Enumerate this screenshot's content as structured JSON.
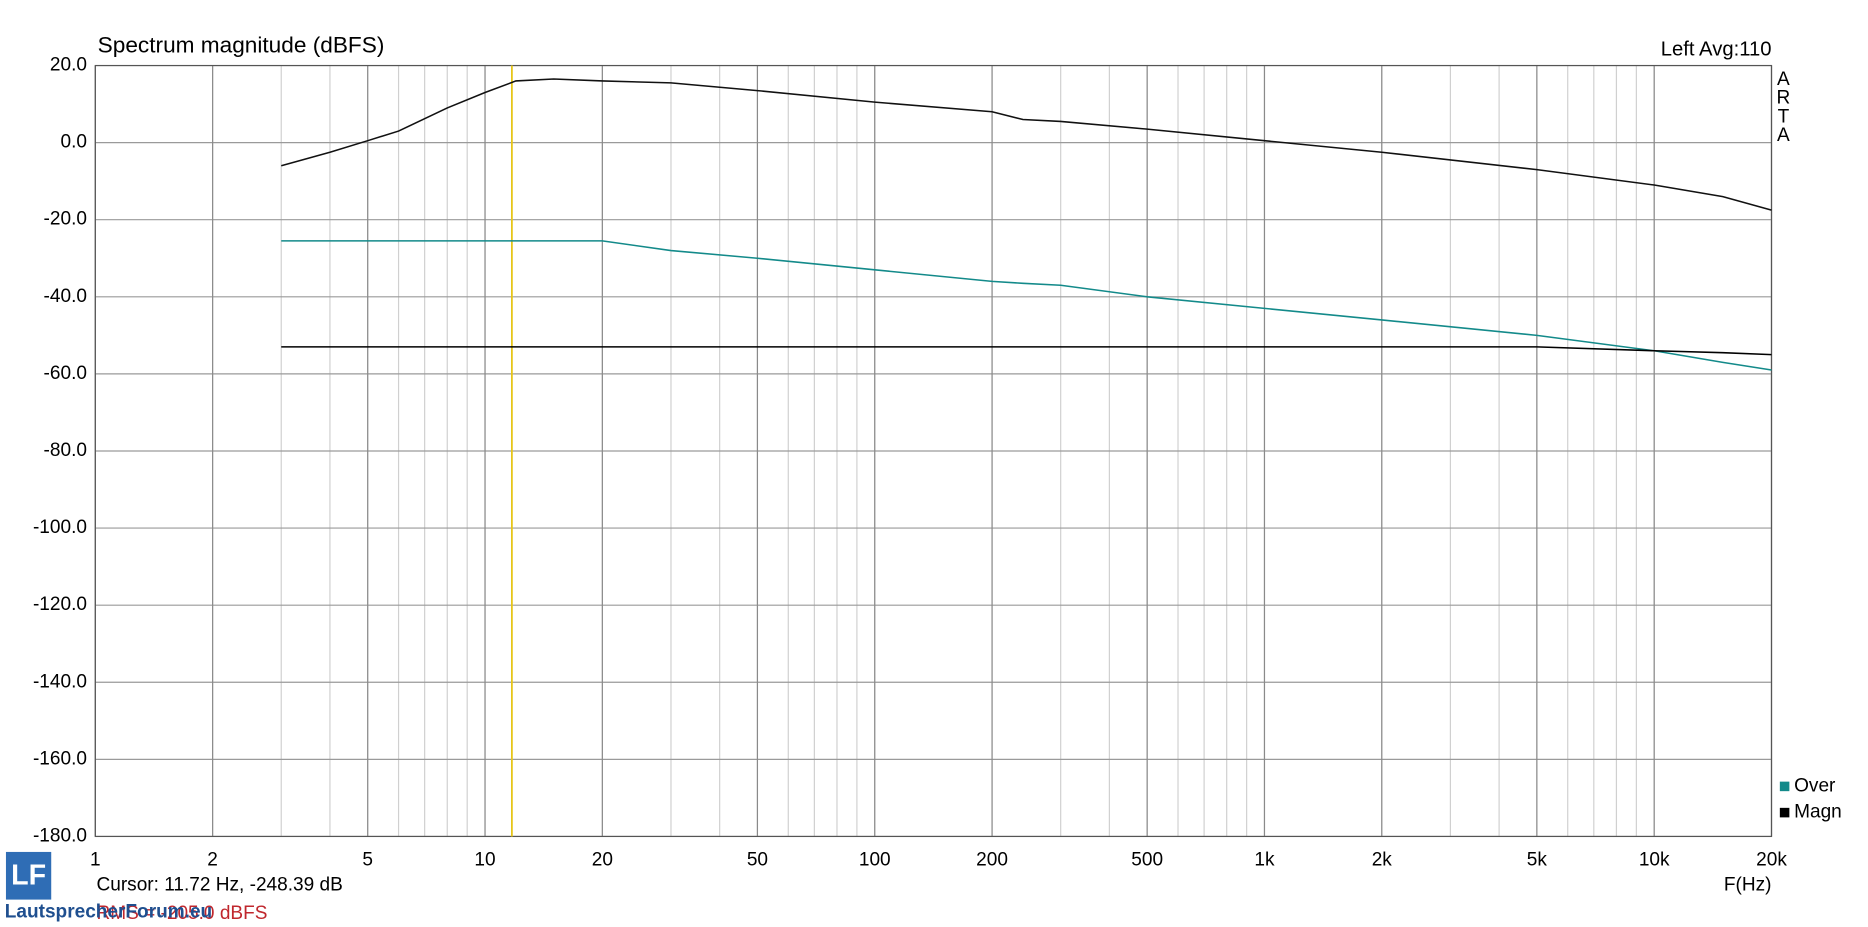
{
  "chart_data": {
    "type": "line",
    "title": "Spectrum magnitude (dBFS)",
    "header_right": "Left  Avg:110",
    "brand": "ARTA",
    "x_label": "F(Hz)",
    "cursor_text": "Cursor: 11.72 Hz, -248.39 dB",
    "rms_text": "RMS = -205.0 dBFS",
    "watermark_logo": "LF",
    "watermark": "LautsprecherForum.eu",
    "x_scale": "log",
    "grid": true,
    "minor_grid": true,
    "cursor_x": 11.72,
    "cursor_color": "#e6c619",
    "xlim": [
      1,
      20000
    ],
    "ylim": [
      -180,
      20
    ],
    "xticks": [
      1,
      2,
      5,
      10,
      20,
      50,
      100,
      200,
      500,
      {
        "value": 1000,
        "label": "1k"
      },
      {
        "value": 2000,
        "label": "2k"
      },
      {
        "value": 5000,
        "label": "5k"
      },
      {
        "value": 10000,
        "label": "10k"
      },
      {
        "value": 20000,
        "label": "20k"
      }
    ],
    "yticks": [
      {
        "value": 20,
        "label": "20.0"
      },
      {
        "value": 0,
        "label": "0.0"
      },
      {
        "value": -20,
        "label": "-20.0"
      },
      {
        "value": -40,
        "label": "-40.0"
      },
      {
        "value": -60,
        "label": "-60.0"
      },
      {
        "value": -80,
        "label": "-80.0"
      },
      {
        "value": -100,
        "label": "-100.0"
      },
      {
        "value": -120,
        "label": "-120.0"
      },
      {
        "value": -140,
        "label": "-140.0"
      },
      {
        "value": -160,
        "label": "-160.0"
      },
      {
        "value": -180,
        "label": "-180.0"
      }
    ],
    "x": [
      3,
      4,
      5,
      6,
      8,
      10,
      12,
      15,
      20,
      30,
      50,
      100,
      200,
      240,
      300,
      500,
      1000,
      2000,
      5000,
      10000,
      15000,
      20000
    ],
    "series": [
      {
        "color": "#111111",
        "values": [
          -6,
          -2.5,
          0.5,
          3,
          9,
          13,
          16,
          16.5,
          16,
          15.5,
          13.5,
          10.5,
          8,
          6,
          5.5,
          3.5,
          0.5,
          -2.5,
          -7,
          -11,
          -14,
          -17.5
        ]
      },
      {
        "name": "Over",
        "color": "#138a8a",
        "values": [
          -25.5,
          -25.5,
          -25.5,
          -25.5,
          -25.5,
          -25.5,
          -25.5,
          -25.5,
          -25.5,
          -28,
          -30,
          -33,
          -36,
          -36.5,
          -37,
          -40,
          -43,
          -46,
          -50,
          -54,
          -57,
          -59
        ]
      },
      {
        "name": "Magn",
        "color": "#000000",
        "values": [
          -53,
          -53,
          -53,
          -53,
          -53,
          -53,
          -53,
          -53,
          -53,
          -53,
          -53,
          -53,
          -53,
          -53,
          -53,
          -53,
          -53,
          -53,
          -53,
          -54,
          -54.5,
          -55
        ]
      }
    ]
  }
}
